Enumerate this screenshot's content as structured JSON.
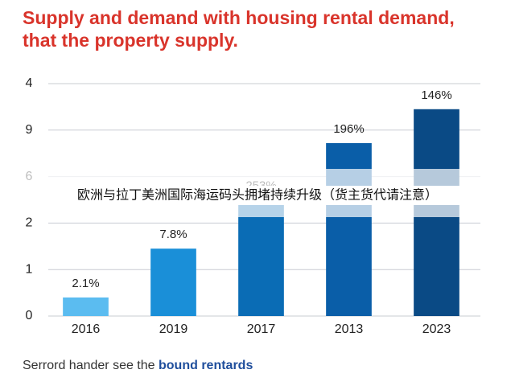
{
  "chart_data": {
    "type": "bar",
    "title": "Supply and demand with housing rental demand, that the property supply.",
    "categories": [
      "2016",
      "2019",
      "2017",
      "2013",
      "2023"
    ],
    "values": [
      0.4,
      1.45,
      2.5,
      3.72,
      4.45
    ],
    "value_labels": [
      "2.1%",
      "7.8%",
      "253%",
      "196%",
      "146%"
    ],
    "colors": [
      "#5bbcf0",
      "#1a8fd8",
      "#0a6cb5",
      "#0a5ea8",
      "#0a4a85"
    ],
    "ylim": [
      0,
      5
    ],
    "yticks": [
      0,
      1,
      2,
      {
        "value": 3,
        "label": "6"
      },
      {
        "value": 4,
        "label": "9"
      },
      {
        "value": 5,
        "label": "4"
      }
    ],
    "grid": true,
    "overlay_text": "欧洲与拉丁美洲国际海运码头拥堵持续升级（货主货代请注意）",
    "footer": {
      "text": "Serrord hander see the",
      "emphasis": "bound rentards"
    }
  }
}
